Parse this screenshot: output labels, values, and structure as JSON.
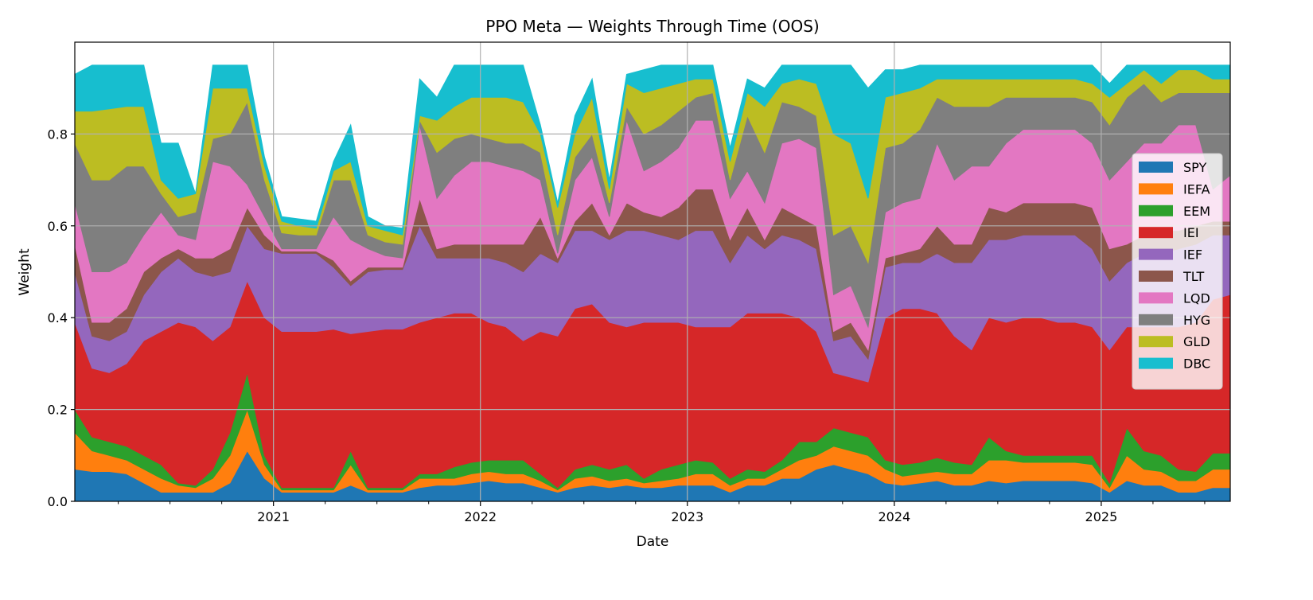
{
  "chart_data": {
    "type": "area",
    "stacked": true,
    "values_are_cumulative_stack_levels": true,
    "title": "PPO Meta — Weights Through Time (OOS)",
    "xlabel": "Date",
    "ylabel": "Weight",
    "ylim": [
      0,
      1.0
    ],
    "yticks": [
      "0.0",
      "0.2",
      "0.4",
      "0.6",
      "0.8"
    ],
    "xticks": [
      "2021",
      "2022",
      "2023",
      "2024",
      "2025"
    ],
    "grid": true,
    "legend_position": "right",
    "dates": [
      "2020-01",
      "2020-02",
      "2020-03",
      "2020-04",
      "2020-05",
      "2020-06",
      "2020-07",
      "2020-08",
      "2020-09",
      "2020-10",
      "2020-11",
      "2020-12",
      "2021-01",
      "2021-02",
      "2021-03",
      "2021-04",
      "2021-05",
      "2021-06",
      "2021-07",
      "2021-08",
      "2021-09",
      "2021-10",
      "2021-11",
      "2021-12",
      "2022-01",
      "2022-02",
      "2022-03",
      "2022-04",
      "2022-05",
      "2022-06",
      "2022-07",
      "2022-08",
      "2022-09",
      "2022-10",
      "2022-11",
      "2022-12",
      "2023-01",
      "2023-02",
      "2023-03",
      "2023-04",
      "2023-05",
      "2023-06",
      "2023-07",
      "2023-08",
      "2023-09",
      "2023-10",
      "2023-11",
      "2023-12",
      "2024-01",
      "2024-02",
      "2024-03",
      "2024-04",
      "2024-05",
      "2024-06",
      "2024-07",
      "2024-08",
      "2024-09",
      "2024-10",
      "2024-11",
      "2024-12",
      "2025-01",
      "2025-02",
      "2025-03",
      "2025-04",
      "2025-05",
      "2025-06",
      "2025-07",
      "2025-08"
    ],
    "series": [
      {
        "name": "SPY",
        "color": "#1f77b4",
        "values": [
          0.07,
          0.065,
          0.065,
          0.06,
          0.04,
          0.02,
          0.02,
          0.02,
          0.02,
          0.04,
          0.11,
          0.05,
          0.02,
          0.02,
          0.02,
          0.02,
          0.035,
          0.02,
          0.02,
          0.02,
          0.03,
          0.035,
          0.035,
          0.04,
          0.045,
          0.04,
          0.04,
          0.03,
          0.02,
          0.03,
          0.035,
          0.03,
          0.035,
          0.03,
          0.03,
          0.035,
          0.035,
          0.035,
          0.02,
          0.035,
          0.035,
          0.05,
          0.05,
          0.07,
          0.08,
          0.07,
          0.06,
          0.04,
          0.035,
          0.04,
          0.045,
          0.035,
          0.035,
          0.045,
          0.04,
          0.045,
          0.045,
          0.045,
          0.045,
          0.04,
          0.02,
          0.045,
          0.035,
          0.035,
          0.02,
          0.02,
          0.03,
          0.03
        ]
      },
      {
        "name": "IEFA",
        "color": "#ff7f0e",
        "values": [
          0.15,
          0.11,
          0.1,
          0.09,
          0.07,
          0.05,
          0.035,
          0.03,
          0.05,
          0.1,
          0.2,
          0.08,
          0.025,
          0.025,
          0.025,
          0.025,
          0.08,
          0.025,
          0.025,
          0.025,
          0.05,
          0.05,
          0.05,
          0.06,
          0.065,
          0.06,
          0.06,
          0.045,
          0.025,
          0.05,
          0.055,
          0.045,
          0.05,
          0.04,
          0.045,
          0.05,
          0.06,
          0.06,
          0.035,
          0.05,
          0.05,
          0.07,
          0.09,
          0.1,
          0.12,
          0.11,
          0.1,
          0.07,
          0.055,
          0.06,
          0.065,
          0.06,
          0.06,
          0.09,
          0.09,
          0.085,
          0.085,
          0.085,
          0.085,
          0.08,
          0.03,
          0.1,
          0.07,
          0.065,
          0.045,
          0.045,
          0.07,
          0.07
        ]
      },
      {
        "name": "EEM",
        "color": "#2ca02c",
        "values": [
          0.2,
          0.14,
          0.13,
          0.12,
          0.1,
          0.08,
          0.04,
          0.035,
          0.07,
          0.15,
          0.28,
          0.1,
          0.03,
          0.03,
          0.03,
          0.03,
          0.11,
          0.03,
          0.03,
          0.03,
          0.06,
          0.06,
          0.075,
          0.085,
          0.09,
          0.09,
          0.09,
          0.06,
          0.03,
          0.07,
          0.08,
          0.07,
          0.08,
          0.05,
          0.07,
          0.08,
          0.09,
          0.085,
          0.05,
          0.07,
          0.065,
          0.09,
          0.13,
          0.13,
          0.16,
          0.15,
          0.14,
          0.09,
          0.08,
          0.085,
          0.095,
          0.085,
          0.08,
          0.14,
          0.11,
          0.1,
          0.1,
          0.1,
          0.1,
          0.1,
          0.04,
          0.16,
          0.11,
          0.1,
          0.07,
          0.065,
          0.105,
          0.105
        ]
      },
      {
        "name": "IEI",
        "color": "#d62728",
        "values": [
          0.39,
          0.29,
          0.28,
          0.3,
          0.35,
          0.37,
          0.39,
          0.38,
          0.35,
          0.38,
          0.48,
          0.4,
          0.37,
          0.37,
          0.37,
          0.375,
          0.365,
          0.37,
          0.375,
          0.375,
          0.39,
          0.4,
          0.41,
          0.41,
          0.39,
          0.38,
          0.35,
          0.37,
          0.36,
          0.42,
          0.43,
          0.39,
          0.38,
          0.39,
          0.39,
          0.39,
          0.38,
          0.38,
          0.38,
          0.41,
          0.41,
          0.41,
          0.4,
          0.37,
          0.28,
          0.27,
          0.26,
          0.4,
          0.42,
          0.42,
          0.41,
          0.36,
          0.33,
          0.4,
          0.39,
          0.4,
          0.4,
          0.39,
          0.39,
          0.38,
          0.33,
          0.38,
          0.38,
          0.38,
          0.38,
          0.39,
          0.44,
          0.45
        ]
      },
      {
        "name": "IEF",
        "color": "#9467bd",
        "values": [
          0.5,
          0.36,
          0.35,
          0.37,
          0.45,
          0.5,
          0.53,
          0.5,
          0.49,
          0.5,
          0.6,
          0.55,
          0.54,
          0.54,
          0.54,
          0.51,
          0.47,
          0.5,
          0.505,
          0.505,
          0.6,
          0.53,
          0.53,
          0.53,
          0.53,
          0.52,
          0.5,
          0.54,
          0.52,
          0.59,
          0.59,
          0.57,
          0.59,
          0.59,
          0.58,
          0.57,
          0.59,
          0.59,
          0.52,
          0.58,
          0.55,
          0.58,
          0.57,
          0.55,
          0.35,
          0.36,
          0.31,
          0.51,
          0.52,
          0.52,
          0.54,
          0.52,
          0.52,
          0.57,
          0.57,
          0.58,
          0.58,
          0.58,
          0.58,
          0.55,
          0.48,
          0.52,
          0.54,
          0.54,
          0.55,
          0.56,
          0.58,
          0.58
        ]
      },
      {
        "name": "TLT",
        "color": "#8c564b",
        "values": [
          0.56,
          0.39,
          0.39,
          0.42,
          0.5,
          0.53,
          0.55,
          0.53,
          0.53,
          0.55,
          0.64,
          0.58,
          0.545,
          0.545,
          0.545,
          0.525,
          0.48,
          0.51,
          0.51,
          0.51,
          0.66,
          0.55,
          0.56,
          0.56,
          0.56,
          0.56,
          0.56,
          0.62,
          0.53,
          0.61,
          0.65,
          0.58,
          0.65,
          0.63,
          0.62,
          0.64,
          0.68,
          0.68,
          0.57,
          0.64,
          0.57,
          0.64,
          0.62,
          0.6,
          0.37,
          0.39,
          0.33,
          0.53,
          0.54,
          0.55,
          0.6,
          0.56,
          0.56,
          0.64,
          0.63,
          0.65,
          0.65,
          0.65,
          0.65,
          0.64,
          0.55,
          0.56,
          0.58,
          0.59,
          0.59,
          0.6,
          0.61,
          0.61
        ]
      },
      {
        "name": "LQD",
        "color": "#e377c2",
        "values": [
          0.65,
          0.5,
          0.5,
          0.52,
          0.58,
          0.63,
          0.58,
          0.57,
          0.74,
          0.73,
          0.69,
          0.62,
          0.55,
          0.55,
          0.55,
          0.62,
          0.57,
          0.55,
          0.535,
          0.53,
          0.82,
          0.66,
          0.71,
          0.74,
          0.74,
          0.73,
          0.72,
          0.7,
          0.54,
          0.7,
          0.75,
          0.62,
          0.83,
          0.72,
          0.74,
          0.77,
          0.83,
          0.83,
          0.66,
          0.72,
          0.65,
          0.78,
          0.79,
          0.77,
          0.45,
          0.47,
          0.38,
          0.63,
          0.65,
          0.66,
          0.78,
          0.7,
          0.73,
          0.73,
          0.78,
          0.81,
          0.81,
          0.81,
          0.81,
          0.78,
          0.7,
          0.74,
          0.78,
          0.78,
          0.82,
          0.82,
          0.68,
          0.71
        ]
      },
      {
        "name": "HYG",
        "color": "#7f7f7f",
        "values": [
          0.78,
          0.7,
          0.7,
          0.73,
          0.73,
          0.67,
          0.62,
          0.63,
          0.79,
          0.8,
          0.87,
          0.7,
          0.585,
          0.58,
          0.58,
          0.7,
          0.7,
          0.58,
          0.565,
          0.56,
          0.83,
          0.76,
          0.79,
          0.8,
          0.79,
          0.78,
          0.78,
          0.76,
          0.58,
          0.75,
          0.8,
          0.65,
          0.86,
          0.8,
          0.82,
          0.85,
          0.88,
          0.89,
          0.7,
          0.84,
          0.76,
          0.87,
          0.86,
          0.84,
          0.58,
          0.6,
          0.52,
          0.77,
          0.78,
          0.81,
          0.88,
          0.86,
          0.86,
          0.86,
          0.88,
          0.88,
          0.88,
          0.88,
          0.88,
          0.87,
          0.82,
          0.88,
          0.91,
          0.87,
          0.89,
          0.89,
          0.89,
          0.89
        ]
      },
      {
        "name": "GLD",
        "color": "#bcbd22",
        "values": [
          0.85,
          0.85,
          0.855,
          0.86,
          0.86,
          0.7,
          0.66,
          0.67,
          0.9,
          0.9,
          0.9,
          0.73,
          0.61,
          0.6,
          0.595,
          0.72,
          0.74,
          0.6,
          0.59,
          0.58,
          0.84,
          0.83,
          0.86,
          0.88,
          0.88,
          0.88,
          0.87,
          0.8,
          0.64,
          0.8,
          0.88,
          0.68,
          0.91,
          0.89,
          0.9,
          0.91,
          0.92,
          0.92,
          0.74,
          0.89,
          0.86,
          0.91,
          0.92,
          0.91,
          0.8,
          0.78,
          0.66,
          0.88,
          0.89,
          0.9,
          0.92,
          0.92,
          0.92,
          0.92,
          0.92,
          0.92,
          0.92,
          0.92,
          0.92,
          0.91,
          0.88,
          0.91,
          0.94,
          0.91,
          0.94,
          0.94,
          0.92,
          0.92
        ]
      },
      {
        "name": "DBC",
        "color": "#17becf",
        "values": [
          0.93,
          0.95,
          0.95,
          0.95,
          0.95,
          0.78,
          0.78,
          0.67,
          0.95,
          0.95,
          0.95,
          0.75,
          0.62,
          0.615,
          0.61,
          0.74,
          0.82,
          0.62,
          0.6,
          0.595,
          0.92,
          0.88,
          0.95,
          0.95,
          0.95,
          0.95,
          0.95,
          0.82,
          0.65,
          0.84,
          0.92,
          0.7,
          0.93,
          0.94,
          0.95,
          0.95,
          0.95,
          0.95,
          0.77,
          0.92,
          0.9,
          0.95,
          0.95,
          0.95,
          0.95,
          0.95,
          0.9,
          0.94,
          0.94,
          0.95,
          0.95,
          0.95,
          0.95,
          0.95,
          0.95,
          0.95,
          0.95,
          0.95,
          0.95,
          0.95,
          0.91,
          0.95,
          0.95,
          0.95,
          0.95,
          0.95,
          0.95,
          0.95
        ]
      }
    ]
  }
}
